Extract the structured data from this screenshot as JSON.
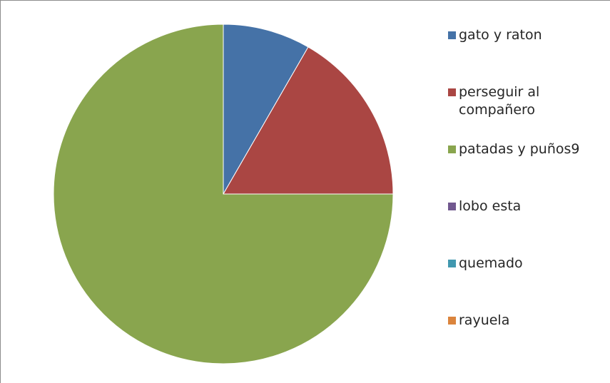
{
  "chart_data": {
    "type": "pie",
    "title": "",
    "categories": [
      "gato y raton",
      "perseguir al compañero",
      "patadas y puños9",
      "lobo esta",
      "quemado",
      "rayuela"
    ],
    "values": [
      1,
      2,
      9,
      0,
      0,
      0
    ],
    "colors": [
      "#4572A7",
      "#AA4643",
      "#89A54E",
      "#71588F",
      "#4198AF",
      "#DB843D"
    ],
    "start_angle_deg": 0,
    "direction": "clockwise",
    "legend": {
      "position": "right",
      "entries": [
        {
          "label": "gato y raton",
          "color": "#4572A7"
        },
        {
          "label": "perseguir al compañero",
          "color": "#AA4643"
        },
        {
          "label": "patadas y puños9",
          "color": "#89A54E"
        },
        {
          "label": "lobo esta",
          "color": "#71588F"
        },
        {
          "label": "quemado",
          "color": "#4198AF"
        },
        {
          "label": "rayuela",
          "color": "#DB843D"
        }
      ]
    }
  }
}
